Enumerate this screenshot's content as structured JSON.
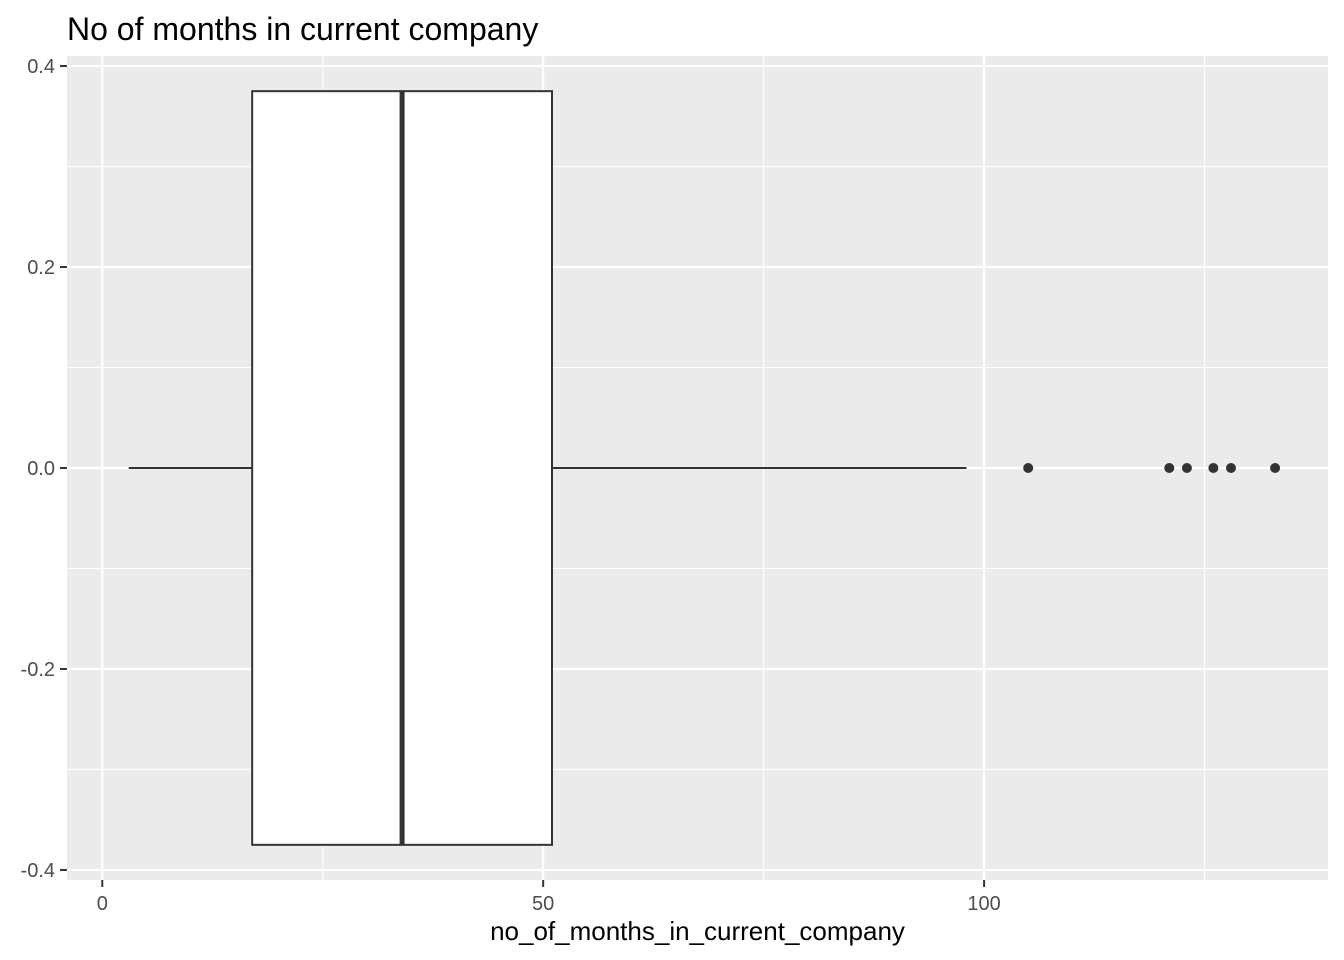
{
  "chart_data": {
    "type": "boxplot",
    "title": "No of months in current company",
    "xlabel": "no_of_months_in_current_company",
    "ylabel": "",
    "xlim": [
      -4,
      139
    ],
    "ylim": [
      -0.41,
      0.41
    ],
    "x_ticks": [
      0,
      50,
      100
    ],
    "x_tick_labels": [
      "0",
      "50",
      "100"
    ],
    "y_ticks": [
      -0.4,
      -0.2,
      0.0,
      0.2,
      0.4
    ],
    "y_tick_labels": [
      "-0.4",
      "-0.2",
      "0.0",
      "0.2",
      "0.4"
    ],
    "grid": true,
    "colors": {
      "panel_background": "#ebebeb",
      "grid": "#ffffff",
      "box_fill": "#ffffff",
      "box_stroke": "#333333",
      "outlier": "#333333"
    },
    "box": {
      "whisker_low": 3,
      "q1": 17,
      "median": 34,
      "q3": 51,
      "whisker_high": 98,
      "box_ymin": -0.375,
      "box_ymax": 0.375,
      "y_center": 0.0
    },
    "outliers": [
      105,
      121,
      123,
      126,
      128,
      133
    ]
  }
}
